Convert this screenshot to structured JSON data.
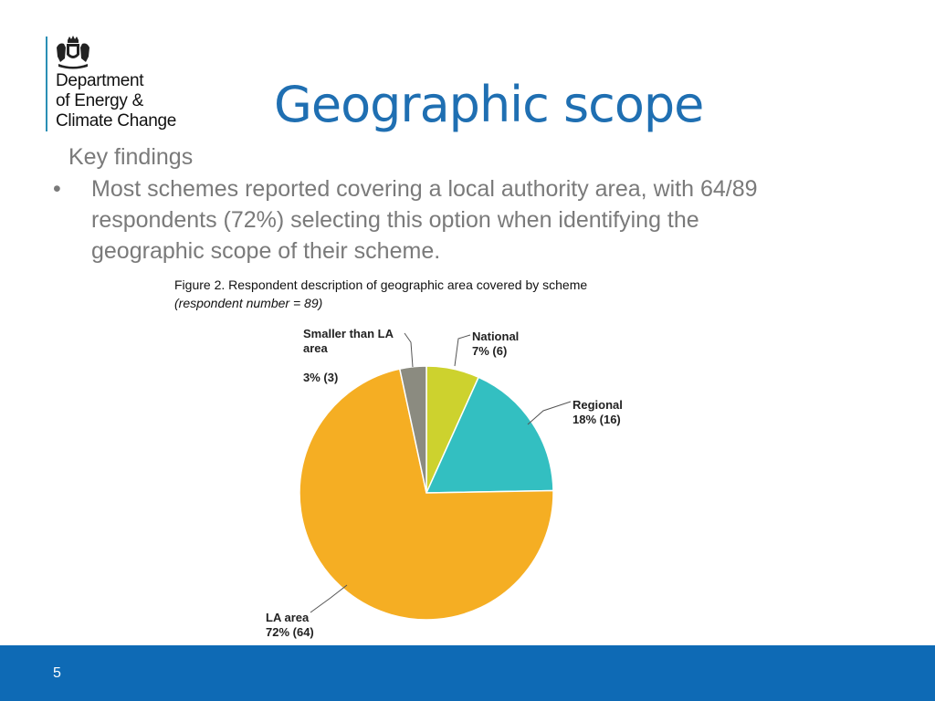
{
  "organisation": {
    "name_lines": [
      "Department",
      "of Energy &",
      "Climate Change"
    ],
    "logo_icon": "royal-coat-of-arms-icon"
  },
  "slide": {
    "title": "Geographic scope",
    "key_findings_heading": "Key findings",
    "bullet": "Most schemes reported covering a local authority area, with 64/89 respondents (72%) selecting this option when identifying the geographic scope of their scheme.",
    "figure_caption": "Figure 2. Respondent description of geographic area covered by scheme",
    "figure_subcaption": "(respondent number = 89)",
    "page_number": "5"
  },
  "colors": {
    "title": "#1f6fb2",
    "footer": "#0e6ab5",
    "body_text": "#7a7a7a"
  },
  "chart_data": {
    "type": "pie",
    "title": "",
    "total_respondents": 89,
    "slices": [
      {
        "label_lines": [
          "National"
        ],
        "value_label": "7% (6)",
        "percent": 7,
        "count": 6,
        "color": "#cdd22e"
      },
      {
        "label_lines": [
          "Regional"
        ],
        "value_label": "18% (16)",
        "percent": 18,
        "count": 16,
        "color": "#33bfc1"
      },
      {
        "label_lines": [
          "LA area"
        ],
        "value_label": "72% (64)",
        "percent": 72,
        "count": 64,
        "color": "#f5ae23"
      },
      {
        "label_lines": [
          "Smaller than LA",
          "area"
        ],
        "value_label": "3% (3)",
        "percent": 3,
        "count": 3,
        "color": "#8b8b80"
      }
    ]
  }
}
